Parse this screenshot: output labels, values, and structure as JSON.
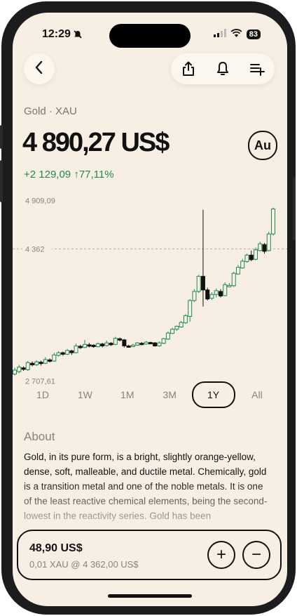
{
  "status_bar": {
    "time": "12:29",
    "battery": "83"
  },
  "header": {
    "back_icon": "chevron-left-icon",
    "share_icon": "share-icon",
    "bell_icon": "bell-icon",
    "add_list_icon": "playlist-add-icon"
  },
  "asset": {
    "subtitle": "Gold · XAU",
    "price": "4 890,27 US$",
    "badge": "Au",
    "change": "+2 129,09 ↑77,11%"
  },
  "colors": {
    "up": "#1f8a4f",
    "down": "#111111",
    "background": "#f7efe3"
  },
  "chart_data": {
    "type": "candlestick",
    "y_ticks": [
      "4 909,09",
      "4 362",
      "2 707,61"
    ],
    "y_tick_values": [
      4909.09,
      4362,
      2707.61
    ],
    "reference_line": 4362,
    "candles": [
      [
        2708,
        2760,
        2690,
        2790
      ],
      [
        2740,
        2800,
        2720,
        2830
      ],
      [
        2790,
        2770,
        2750,
        2810
      ],
      [
        2765,
        2860,
        2750,
        2880
      ],
      [
        2850,
        2830,
        2810,
        2875
      ],
      [
        2830,
        2870,
        2815,
        2890
      ],
      [
        2865,
        2850,
        2820,
        2885
      ],
      [
        2850,
        2900,
        2840,
        2930
      ],
      [
        2895,
        2880,
        2860,
        2915
      ],
      [
        2880,
        2960,
        2870,
        2990
      ],
      [
        2955,
        2990,
        2940,
        3010
      ],
      [
        2990,
        2970,
        2950,
        3005
      ],
      [
        2970,
        3020,
        2960,
        3040
      ],
      [
        3015,
        2990,
        2960,
        3030
      ],
      [
        2990,
        3080,
        2980,
        3110
      ],
      [
        3075,
        3060,
        3040,
        3095
      ],
      [
        3060,
        3100,
        3050,
        3160
      ],
      [
        3095,
        3090,
        3060,
        3120
      ],
      [
        3090,
        3070,
        3055,
        3100
      ],
      [
        3070,
        3110,
        3060,
        3125
      ],
      [
        3105,
        3080,
        3060,
        3120
      ],
      [
        3085,
        3120,
        3070,
        3150
      ],
      [
        3115,
        3095,
        3080,
        3130
      ],
      [
        3100,
        3180,
        3090,
        3200
      ],
      [
        3175,
        3160,
        3140,
        3190
      ],
      [
        3160,
        3080,
        3060,
        3170
      ],
      [
        3080,
        3075,
        3060,
        3095
      ],
      [
        3075,
        3090,
        3065,
        3105
      ],
      [
        3090,
        3120,
        3080,
        3130
      ],
      [
        3115,
        3110,
        3090,
        3130
      ],
      [
        3105,
        3130,
        3095,
        3145
      ],
      [
        3125,
        3120,
        3105,
        3135
      ],
      [
        3120,
        3080,
        3070,
        3130
      ],
      [
        3080,
        3120,
        3070,
        3140
      ],
      [
        3115,
        3175,
        3105,
        3185
      ],
      [
        3170,
        3250,
        3160,
        3270
      ],
      [
        3245,
        3300,
        3240,
        3320
      ],
      [
        3300,
        3340,
        3280,
        3350
      ],
      [
        3330,
        3390,
        3320,
        3410
      ],
      [
        3385,
        3480,
        3370,
        3500
      ],
      [
        3470,
        3680,
        3400,
        3700
      ],
      [
        3680,
        3800,
        3660,
        3830
      ],
      [
        3800,
        4000,
        3780,
        4020
      ],
      [
        4000,
        3820,
        3600,
        4880
      ],
      [
        3820,
        3700,
        3680,
        3850
      ],
      [
        3710,
        3760,
        3690,
        3790
      ],
      [
        3760,
        3810,
        3720,
        3840
      ],
      [
        3800,
        3740,
        3720,
        3830
      ],
      [
        3745,
        3890,
        3735,
        3920
      ],
      [
        3880,
        3880,
        3860,
        3910
      ],
      [
        3875,
        4040,
        3860,
        4060
      ],
      [
        4030,
        4120,
        4020,
        4150
      ],
      [
        4110,
        4200,
        4100,
        4230
      ],
      [
        4195,
        4280,
        4180,
        4300
      ],
      [
        4280,
        4220,
        4200,
        4340
      ],
      [
        4225,
        4350,
        4210,
        4380
      ],
      [
        4340,
        4430,
        4330,
        4460
      ],
      [
        4420,
        4330,
        4300,
        4440
      ],
      [
        4340,
        4560,
        4330,
        4590
      ],
      [
        4560,
        4890,
        4540,
        4909
      ]
    ]
  },
  "periods": [
    "1D",
    "1W",
    "1M",
    "3M",
    "1Y",
    "All"
  ],
  "active_period": "1Y",
  "about": {
    "title": "About",
    "text": "Gold, in its pure form, is a bright, slightly orange-yellow, dense, soft, malleable, and ductile metal. Chemically, gold is a transition metal and one of the noble metals. It is one of the least reactive chemical elements, being the second-lowest in the reactivity series. Gold has been"
  },
  "trade": {
    "amount": "48,90 US$",
    "detail": "0,01 XAU @ 4 362,00 US$",
    "plus": "+",
    "minus": "−"
  }
}
